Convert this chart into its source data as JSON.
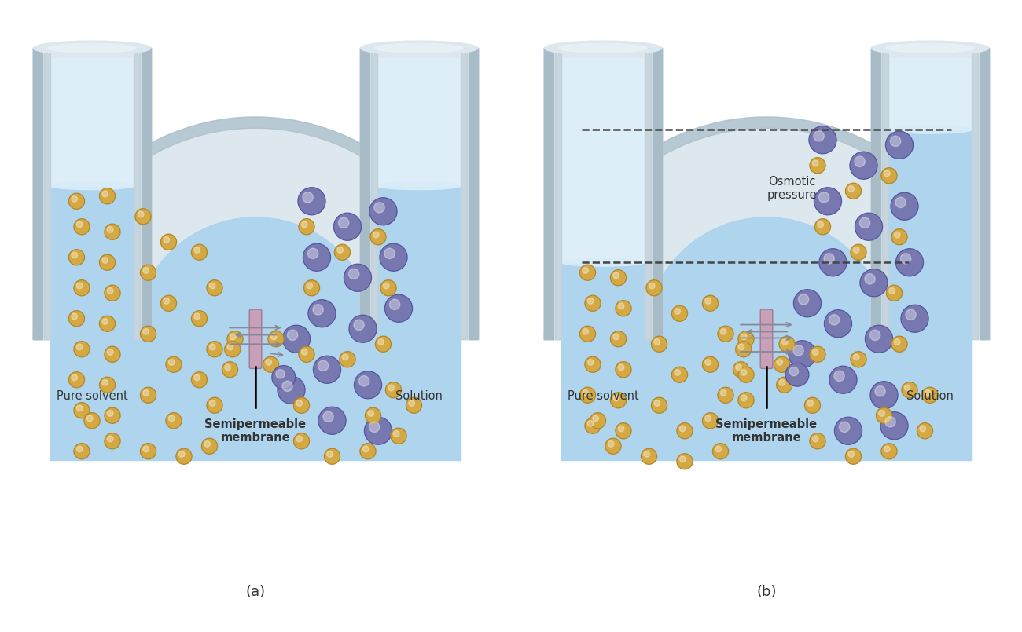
{
  "background_color": "#ffffff",
  "glass_outer_color": "#c5d5de",
  "glass_mid_color": "#dce8ee",
  "glass_inner_color": "#eaf2f6",
  "glass_shadow": "#a8bcc8",
  "liquid_color": "#aed4ee",
  "liquid_light": "#cce4f4",
  "liquid_top_color": "#d8ecf8",
  "membrane_color": "#c8a0b8",
  "membrane_edge": "#a07898",
  "solvent_color": "#d4a843",
  "solvent_edge": "#b08828",
  "solute_color": "#7878b0",
  "solute_edge": "#5555a0",
  "arrow_color": "#888898",
  "label_color": "#333333",
  "dashed_color": "#444444",
  "fig_label_a": "(a)",
  "fig_label_b": "(b)",
  "label_pure_solvent": "Pure solvent",
  "label_solution": "Solution",
  "label_membrane": "Semipermeable\nmembrane",
  "label_osmotic": "Osmotic\npressure"
}
